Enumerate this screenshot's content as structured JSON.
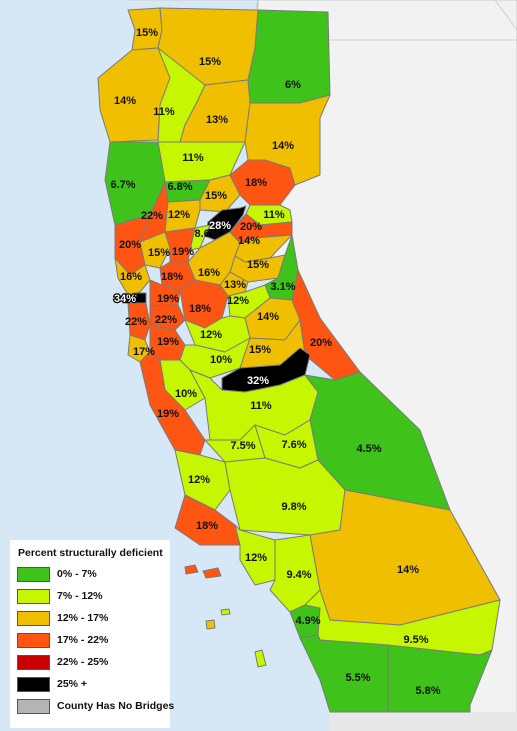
{
  "colors": {
    "ocean": "#d6e8f6",
    "land": "#f2f2f2",
    "border": "#c9c9c9",
    "green": "#3fc21a",
    "lime": "#c6f700",
    "gold": "#f0c000",
    "orange": "#ff5512",
    "darkred": "#c80000",
    "black": "#000000",
    "gray": "#b4b4b4"
  },
  "legend": {
    "title": "Percent structurally deficient",
    "items": [
      {
        "label": "0% - 7%",
        "color": "#3fc21a"
      },
      {
        "label": "7% - 12%",
        "color": "#c6f700"
      },
      {
        "label": "12% - 17%",
        "color": "#f0c000"
      },
      {
        "label": "17% - 22%",
        "color": "#ff5512"
      },
      {
        "label": "22% - 25%",
        "color": "#c80000"
      },
      {
        "label": "25% +",
        "color": "#000000"
      },
      {
        "label": "County Has No Bridges",
        "color": "#b4b4b4"
      }
    ]
  },
  "counties": [
    {
      "label": "15%",
      "cls": "gold"
    },
    {
      "label": "15%",
      "cls": "gold"
    },
    {
      "label": "6%",
      "cls": "green"
    },
    {
      "label": "14%",
      "cls": "gold"
    },
    {
      "label": "11%",
      "cls": "lime"
    },
    {
      "label": "13%",
      "cls": "gold"
    },
    {
      "label": "14%",
      "cls": "gold"
    },
    {
      "label": "11%",
      "cls": "lime"
    },
    {
      "label": "6.7%",
      "cls": "green"
    },
    {
      "label": "6.8%",
      "cls": "green"
    },
    {
      "label": "15%",
      "cls": "gold"
    },
    {
      "label": "18%",
      "cls": "orange"
    },
    {
      "label": "22%",
      "cls": "orange"
    },
    {
      "label": "12%",
      "cls": "gold"
    },
    {
      "label": "28%",
      "cls": "black"
    },
    {
      "label": "11%",
      "cls": "lime"
    },
    {
      "label": "8.6%",
      "cls": "lime"
    },
    {
      "label": "20%",
      "cls": "orange"
    },
    {
      "label": "14%",
      "cls": "gold"
    },
    {
      "label": "20%",
      "cls": "orange"
    },
    {
      "label": "15%",
      "cls": "gold"
    },
    {
      "label": "19%",
      "cls": "orange"
    },
    {
      "label": "15%",
      "cls": "gold"
    },
    {
      "label": "16%",
      "cls": "gold"
    },
    {
      "label": "18%",
      "cls": "orange"
    },
    {
      "label": "13%",
      "cls": "gold"
    },
    {
      "label": "3.1%",
      "cls": "green"
    },
    {
      "label": "16%",
      "cls": "gold"
    },
    {
      "label": "34%",
      "cls": "black"
    },
    {
      "label": "19%",
      "cls": "orange"
    },
    {
      "label": "18%",
      "cls": "orange"
    },
    {
      "label": "12%",
      "cls": "lime"
    },
    {
      "label": "22%",
      "cls": "orange"
    },
    {
      "label": "22%",
      "cls": "orange"
    },
    {
      "label": "14%",
      "cls": "gold"
    },
    {
      "label": "12%",
      "cls": "lime"
    },
    {
      "label": "17%",
      "cls": "gold"
    },
    {
      "label": "19%",
      "cls": "orange"
    },
    {
      "label": "20%",
      "cls": "orange"
    },
    {
      "label": "15%",
      "cls": "gold"
    },
    {
      "label": "10%",
      "cls": "lime"
    },
    {
      "label": "32%",
      "cls": "black"
    },
    {
      "label": "10%",
      "cls": "lime"
    },
    {
      "label": "11%",
      "cls": "lime"
    },
    {
      "label": "19%",
      "cls": "orange"
    },
    {
      "label": "4.5%",
      "cls": "green"
    },
    {
      "label": "7.5%",
      "cls": "lime"
    },
    {
      "label": "7.6%",
      "cls": "lime"
    },
    {
      "label": "12%",
      "cls": "lime"
    },
    {
      "label": "9.8%",
      "cls": "lime"
    },
    {
      "label": "18%",
      "cls": "orange"
    },
    {
      "label": "14%",
      "cls": "gold"
    },
    {
      "label": "12%",
      "cls": "lime"
    },
    {
      "label": "9.4%",
      "cls": "lime"
    },
    {
      "label": "4.9%",
      "cls": "green"
    },
    {
      "label": "9.5%",
      "cls": "lime"
    },
    {
      "label": "5.5%",
      "cls": "green"
    },
    {
      "label": "5.8%",
      "cls": "green"
    }
  ]
}
